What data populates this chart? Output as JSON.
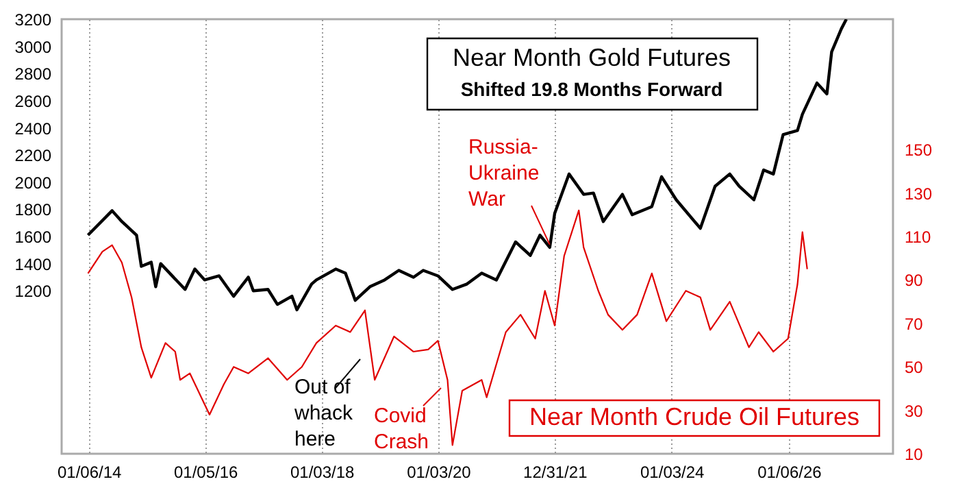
{
  "chart_data": {
    "type": "line",
    "xlim": [
      "2013-07-20",
      "2027-10-20"
    ],
    "xticks": [
      {
        "value": "2014-01-06",
        "label": "01/06/14"
      },
      {
        "value": "2016-01-05",
        "label": "01/05/16"
      },
      {
        "value": "2018-01-03",
        "label": "01/03/18"
      },
      {
        "value": "2020-01-03",
        "label": "01/03/20"
      },
      {
        "value": "2021-12-31",
        "label": "12/31/21"
      },
      {
        "value": "2024-01-03",
        "label": "01/03/24"
      },
      {
        "value": "2026-01-06",
        "label": "01/06/26"
      }
    ],
    "ylim": [
      0,
      3200
    ],
    "yticks": [
      1200,
      1400,
      1600,
      1800,
      2000,
      2200,
      2400,
      2600,
      2800,
      3000,
      3200
    ],
    "y2lim": [
      10,
      210
    ],
    "y2ticks": [
      10,
      30,
      50,
      70,
      90,
      110,
      130,
      150
    ],
    "grid": "x",
    "legend": false,
    "annotations": [
      "Out of\nwhack\nhere",
      "Covid\nCrash",
      {
        "text": "Russia-\nUkraine\nWar",
        "x": "2021-12",
        "y": 1540
      }
    ],
    "series": [
      {
        "name": "Near Month Gold Futures\nShifted 19.8 Months Forward",
        "color": "#000000",
        "x": [
          "2014-01",
          "2014-06",
          "2014-08",
          "2014-11",
          "2014-12",
          "2015-02",
          "2015-03",
          "2015-04",
          "2015-09",
          "2015-11",
          "2016-01",
          "2016-04",
          "2016-07",
          "2016-10",
          "2016-11",
          "2017-02",
          "2017-04",
          "2017-07",
          "2017-08",
          "2017-11",
          "2017-12",
          "2018-04",
          "2018-06",
          "2018-08",
          "2018-11",
          "2019-02",
          "2019-05",
          "2019-08",
          "2019-10",
          "2020-01",
          "2020-04",
          "2020-07",
          "2020-10",
          "2021-01",
          "2021-05",
          "2021-08",
          "2021-10",
          "2021-12",
          "2022-01",
          "2022-04",
          "2022-07",
          "2022-09",
          "2022-11",
          "2023-03",
          "2023-05",
          "2023-09",
          "2023-11",
          "2024-02",
          "2024-07",
          "2024-10",
          "2025-01",
          "2025-03",
          "2025-06",
          "2025-08",
          "2025-10",
          "2025-12",
          "2026-03",
          "2026-04",
          "2026-07",
          "2026-09",
          "2026-10",
          "2026-12",
          "2027-01"
        ],
        "values": [
          1610,
          1790,
          1710,
          1610,
          1380,
          1410,
          1230,
          1400,
          1210,
          1360,
          1280,
          1310,
          1160,
          1300,
          1200,
          1210,
          1100,
          1160,
          1060,
          1250,
          1280,
          1360,
          1330,
          1130,
          1230,
          1280,
          1350,
          1300,
          1350,
          1310,
          1210,
          1250,
          1330,
          1280,
          1560,
          1460,
          1610,
          1520,
          1770,
          2060,
          1910,
          1920,
          1710,
          1910,
          1760,
          1820,
          2040,
          1870,
          1660,
          1970,
          2060,
          1970,
          1870,
          2090,
          2060,
          2350,
          2380,
          2500,
          2730,
          2650,
          2960,
          3130,
          3200
        ]
      },
      {
        "name": "Near Month Crude Oil Futures",
        "color": "#e00000",
        "axis": "y2",
        "x": [
          "2014-01",
          "2014-04",
          "2014-06",
          "2014-08",
          "2014-10",
          "2014-12",
          "2015-02",
          "2015-03",
          "2015-05",
          "2015-07",
          "2015-08",
          "2015-10",
          "2016-02",
          "2016-05",
          "2016-07",
          "2016-10",
          "2017-02",
          "2017-06",
          "2017-09",
          "2017-12",
          "2018-04",
          "2018-07",
          "2018-10",
          "2018-12",
          "2019-04",
          "2019-08",
          "2019-11",
          "2020-01",
          "2020-03",
          "2020-04",
          "2020-06",
          "2020-10",
          "2020-11",
          "2021-03",
          "2021-06",
          "2021-09",
          "2021-11",
          "2022-01",
          "2022-03",
          "2022-06",
          "2022-07",
          "2022-10",
          "2022-12",
          "2023-03",
          "2023-06",
          "2023-09",
          "2023-12",
          "2024-04",
          "2024-07",
          "2024-09",
          "2025-01",
          "2025-05",
          "2025-07",
          "2025-10",
          "2026-01",
          "2026-03",
          "2026-04",
          "2026-05"
        ],
        "values": [
          93,
          103,
          106,
          98,
          82,
          59,
          45,
          50,
          61,
          57,
          44,
          47,
          28,
          42,
          50,
          47,
          54,
          44,
          50,
          61,
          69,
          66,
          76,
          44,
          64,
          57,
          58,
          62,
          44,
          14,
          39,
          44,
          36,
          66,
          74,
          63,
          85,
          69,
          101,
          122,
          105,
          85,
          74,
          67,
          74,
          93,
          71,
          85,
          82,
          67,
          80,
          59,
          66,
          57,
          63,
          88,
          112,
          95
        ]
      }
    ]
  }
}
